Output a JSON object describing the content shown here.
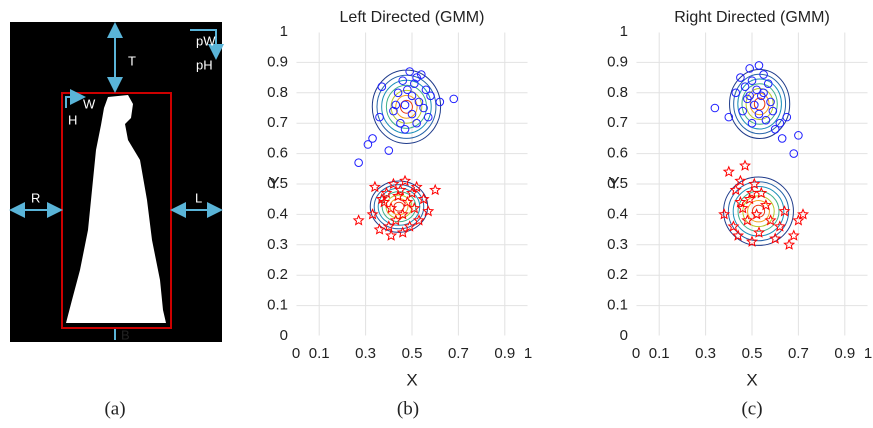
{
  "diagram": {
    "labels": [
      "T",
      "pW",
      "pH",
      "W",
      "H",
      "R",
      "L",
      "B"
    ]
  },
  "captions": [
    "(a)",
    "(b)",
    "(c)"
  ],
  "chart_data": [
    {
      "type": "scatter",
      "title": "Left Directed (GMM)",
      "x_label": "X",
      "y_label": "Y",
      "xlim": [
        0,
        1
      ],
      "ylim": [
        0,
        1
      ],
      "xticks": [
        0,
        0.1,
        0.3,
        0.5,
        0.7,
        0.9,
        1
      ],
      "yticks": [
        0,
        0.1,
        0.2,
        0.3,
        0.4,
        0.5,
        0.6,
        0.7,
        0.8,
        0.9,
        1
      ],
      "grid": true,
      "series": [
        {
          "color": "#1f1fff",
          "marker": "circle",
          "x": [
            0.27,
            0.31,
            0.33,
            0.36,
            0.37,
            0.4,
            0.42,
            0.44,
            0.45,
            0.46,
            0.47,
            0.48,
            0.49,
            0.5,
            0.5,
            0.51,
            0.52,
            0.53,
            0.54,
            0.55,
            0.56,
            0.57,
            0.58,
            0.62,
            0.68,
            0.43,
            0.47,
            0.52
          ],
          "values": [
            0.57,
            0.63,
            0.65,
            0.72,
            0.82,
            0.61,
            0.74,
            0.8,
            0.7,
            0.84,
            0.76,
            0.81,
            0.87,
            0.73,
            0.79,
            0.83,
            0.7,
            0.77,
            0.86,
            0.75,
            0.81,
            0.72,
            0.79,
            0.77,
            0.78,
            0.76,
            0.68,
            0.85
          ]
        },
        {
          "color": "#ff0000",
          "marker": "star",
          "x": [
            0.27,
            0.33,
            0.34,
            0.36,
            0.38,
            0.39,
            0.4,
            0.41,
            0.42,
            0.43,
            0.44,
            0.45,
            0.46,
            0.47,
            0.48,
            0.49,
            0.5,
            0.51,
            0.52,
            0.53,
            0.55,
            0.57,
            0.6,
            0.41,
            0.37,
            0.46
          ],
          "values": [
            0.38,
            0.4,
            0.49,
            0.35,
            0.44,
            0.47,
            0.36,
            0.42,
            0.5,
            0.38,
            0.46,
            0.48,
            0.4,
            0.51,
            0.44,
            0.36,
            0.47,
            0.42,
            0.49,
            0.38,
            0.45,
            0.41,
            0.48,
            0.33,
            0.45,
            0.34
          ]
        }
      ]
    },
    {
      "type": "scatter",
      "title": "Right Directed (GMM)",
      "x_label": "X",
      "y_label": "Y",
      "xlim": [
        0,
        1
      ],
      "ylim": [
        0,
        1
      ],
      "xticks": [
        0,
        0.1,
        0.3,
        0.5,
        0.7,
        0.9,
        1
      ],
      "yticks": [
        0,
        0.1,
        0.2,
        0.3,
        0.4,
        0.5,
        0.6,
        0.7,
        0.8,
        0.9,
        1
      ],
      "grid": true,
      "series": [
        {
          "color": "#1f1fff",
          "marker": "circle",
          "x": [
            0.34,
            0.4,
            0.43,
            0.45,
            0.46,
            0.47,
            0.48,
            0.49,
            0.5,
            0.5,
            0.51,
            0.52,
            0.53,
            0.53,
            0.54,
            0.55,
            0.56,
            0.57,
            0.58,
            0.59,
            0.6,
            0.62,
            0.63,
            0.65,
            0.68,
            0.7,
            0.49,
            0.55
          ],
          "values": [
            0.75,
            0.72,
            0.8,
            0.85,
            0.74,
            0.82,
            0.78,
            0.88,
            0.7,
            0.84,
            0.76,
            0.81,
            0.89,
            0.73,
            0.79,
            0.86,
            0.71,
            0.83,
            0.77,
            0.74,
            0.68,
            0.7,
            0.65,
            0.72,
            0.6,
            0.66,
            0.79,
            0.8
          ]
        },
        {
          "color": "#ff0000",
          "marker": "star",
          "x": [
            0.38,
            0.4,
            0.42,
            0.43,
            0.44,
            0.45,
            0.46,
            0.47,
            0.48,
            0.49,
            0.5,
            0.51,
            0.52,
            0.53,
            0.54,
            0.56,
            0.58,
            0.6,
            0.62,
            0.64,
            0.66,
            0.68,
            0.7,
            0.72,
            0.45,
            0.5
          ],
          "values": [
            0.4,
            0.54,
            0.36,
            0.48,
            0.33,
            0.51,
            0.42,
            0.56,
            0.38,
            0.45,
            0.31,
            0.5,
            0.4,
            0.34,
            0.47,
            0.43,
            0.38,
            0.32,
            0.36,
            0.41,
            0.3,
            0.33,
            0.38,
            0.4,
            0.44,
            0.47
          ]
        }
      ]
    }
  ]
}
